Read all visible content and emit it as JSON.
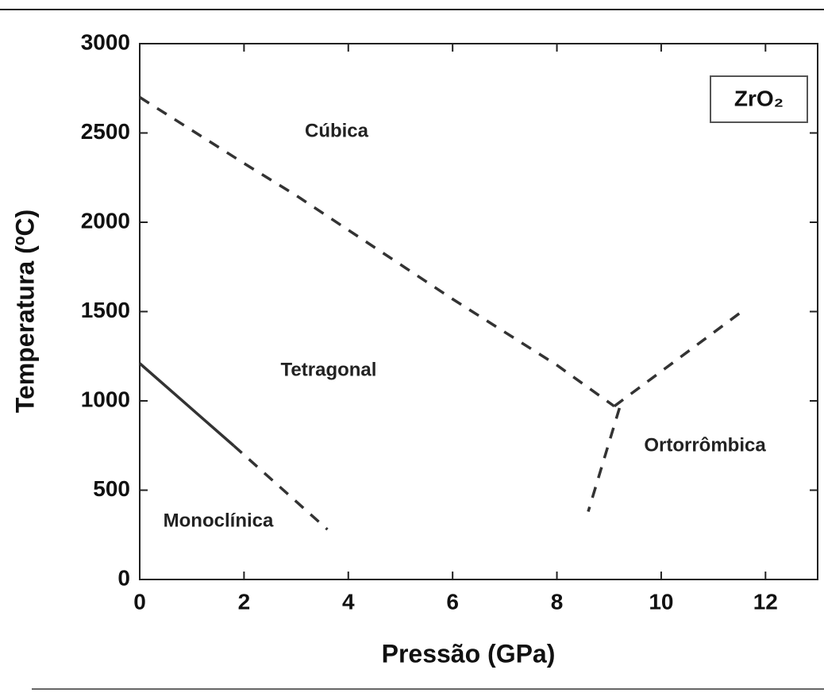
{
  "chart_data": {
    "type": "line",
    "xlabel": "Pressão (GPa)",
    "ylabel": "Temperatura (ºC)",
    "xlim": [
      0,
      13
    ],
    "xticks": [
      0,
      2,
      4,
      6,
      8,
      10,
      12
    ],
    "ylim": [
      0,
      3000
    ],
    "yticks": [
      0,
      500,
      1000,
      1500,
      2000,
      2500,
      3000
    ],
    "legend_label": "ZrO₂",
    "annotations": [
      "Cúbica",
      "Tetragonal",
      "Ortorrômbica",
      "Monoclínica"
    ],
    "series": [
      {
        "x": [
          0,
          2,
          3,
          6,
          8,
          9.1
        ],
        "values": [
          2700,
          2330,
          2150,
          1570,
          1200,
          970
        ],
        "style": "dashed",
        "color": "#333333"
      },
      {
        "x": [
          9.1,
          11.5
        ],
        "values": [
          970,
          1490
        ],
        "style": "dashed",
        "color": "#333333"
      },
      {
        "x": [
          9.2,
          8.6
        ],
        "values": [
          960,
          380
        ],
        "style": "dashed",
        "color": "#333333"
      },
      {
        "x": [
          0,
          1.8
        ],
        "values": [
          1210,
          750
        ],
        "style": "solid",
        "color": "#333333"
      },
      {
        "x": [
          1.8,
          3.6
        ],
        "values": [
          750,
          280
        ],
        "style": "dashed",
        "color": "#333333"
      }
    ]
  }
}
